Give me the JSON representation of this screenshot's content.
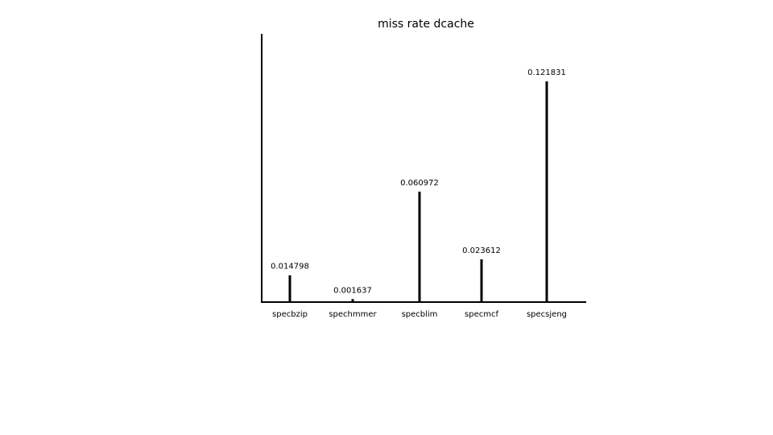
{
  "chart_data": {
    "type": "bar",
    "title": "miss rate dcache",
    "xlabel": "",
    "ylabel": "",
    "categories": [
      "specbzip",
      "spechmmer",
      "specblim",
      "specmcf",
      "specsjeng"
    ],
    "values": [
      0.014798,
      0.001637,
      0.060972,
      0.023612,
      0.121831
    ],
    "data_labels": [
      "0.014798",
      "0.001637",
      "0.060972",
      "0.023612",
      "0.121831"
    ],
    "ylim": [
      0,
      0.15
    ],
    "grid": false,
    "legend": "none",
    "bar_color": "#000000"
  }
}
